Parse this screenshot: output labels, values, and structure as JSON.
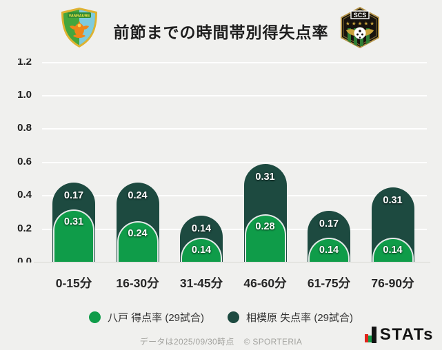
{
  "header": {
    "title": "前節までの時間帯別得失点率",
    "home_crest_text": "VANRAURE",
    "away_crest_text": "SCS"
  },
  "chart_data": {
    "type": "bar",
    "stacked": true,
    "title": "前節までの時間帯別得失点率",
    "categories": [
      "0-15分",
      "16-30分",
      "31-45分",
      "46-60分",
      "61-75分",
      "76-90分"
    ],
    "series": [
      {
        "name": "八戸 得点率 (29試合)",
        "color": "#0f9c49",
        "position": "front-bottom",
        "values": [
          0.31,
          0.24,
          0.14,
          0.28,
          0.14,
          0.14
        ]
      },
      {
        "name": "相模原 失点率 (29試合)",
        "color": "#1d4a40",
        "position": "back-top",
        "values": [
          0.17,
          0.24,
          0.14,
          0.31,
          0.17,
          0.31
        ]
      }
    ],
    "xlabel": "",
    "ylabel": "",
    "ylim": [
      0,
      1.2
    ],
    "yticks": [
      0.0,
      0.2,
      0.4,
      0.6,
      0.8,
      1.0,
      1.2
    ],
    "grid": true,
    "value_labels": true,
    "legend_position": "bottom"
  },
  "footer": {
    "note": "データは2025/09/30時点",
    "copyright": "© SPORTERIA",
    "brand": "STATs"
  },
  "icons": {
    "home_crest": "vanraure-hachinohe-crest",
    "away_crest": "sc-sagamihara-crest",
    "brand_icon": "bar-chart-icon"
  },
  "colors": {
    "background": "#f0f0ee",
    "gridline": "#ffffff",
    "baseline": "#d8d8d4",
    "home_series": "#0f9c49",
    "away_series": "#1d4a40"
  }
}
